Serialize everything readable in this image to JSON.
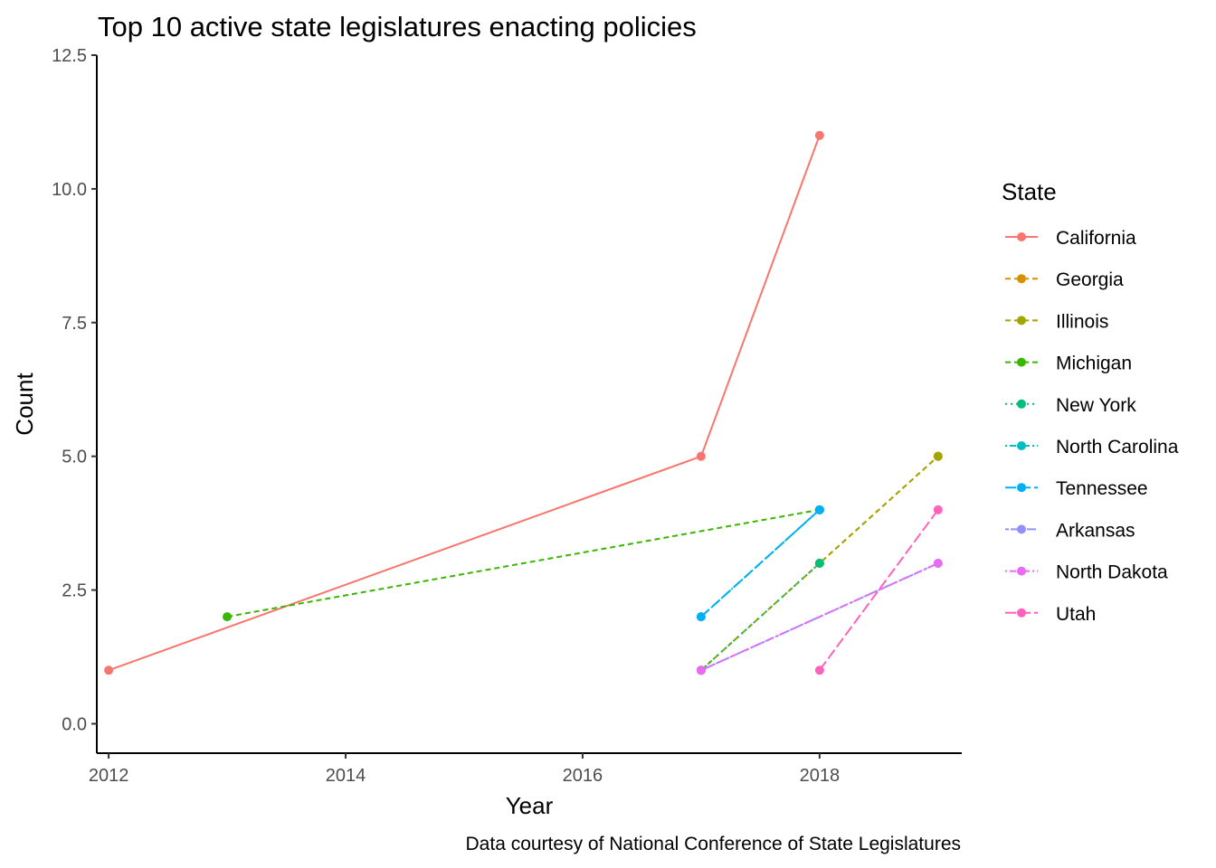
{
  "chart_data": {
    "type": "line",
    "title": "Top 10 active state legislatures enacting policies",
    "xlabel": "Year",
    "ylabel": "Count",
    "caption": "Data courtesy of National Conference of State Legislatures",
    "legend_title": "State",
    "legend_position": "right",
    "grid": false,
    "xlim": [
      2011.9,
      2019.2
    ],
    "ylim": [
      -0.55,
      12.5
    ],
    "x_ticks": [
      2012,
      2014,
      2016,
      2018
    ],
    "y_ticks": [
      0.0,
      2.5,
      5.0,
      7.5,
      10.0,
      12.5
    ],
    "x_tick_labels": [
      "2012",
      "2014",
      "2016",
      "2018"
    ],
    "y_tick_labels": [
      "0.0",
      "2.5",
      "5.0",
      "7.5",
      "10.0",
      "12.5"
    ],
    "series": [
      {
        "name": "California",
        "color": "#F8766D",
        "dash": "solid",
        "x": [
          2012,
          2017,
          2018
        ],
        "y": [
          1,
          5,
          11
        ]
      },
      {
        "name": "Georgia",
        "color": "#D89000",
        "dash": "dashed",
        "x": [
          2017,
          2018,
          2019
        ],
        "y": [
          1,
          3,
          5
        ]
      },
      {
        "name": "Illinois",
        "color": "#A3A500",
        "dash": "dashed",
        "x": [
          2017,
          2018,
          2019
        ],
        "y": [
          1,
          3,
          5
        ]
      },
      {
        "name": "Michigan",
        "color": "#39B600",
        "dash": "dashed",
        "x": [
          2013,
          2018
        ],
        "y": [
          2,
          4
        ]
      },
      {
        "name": "New York",
        "color": "#00BF7D",
        "dash": "dotted",
        "x": [
          2017,
          2018
        ],
        "y": [
          1,
          3
        ]
      },
      {
        "name": "North Carolina",
        "color": "#00BFC4",
        "dash": "dotdash",
        "x": [
          2017,
          2018
        ],
        "y": [
          2,
          4
        ]
      },
      {
        "name": "Tennessee",
        "color": "#00B0F6",
        "dash": "longdash",
        "x": [
          2017,
          2018
        ],
        "y": [
          2,
          4
        ]
      },
      {
        "name": "Arkansas",
        "color": "#9590FF",
        "dash": "twodash",
        "x": [
          2017,
          2019
        ],
        "y": [
          1,
          3
        ]
      },
      {
        "name": "North Dakota",
        "color": "#E76BF3",
        "dash": "dotdash",
        "x": [
          2017,
          2019
        ],
        "y": [
          1,
          3
        ]
      },
      {
        "name": "Utah",
        "color": "#FF62BC",
        "dash": "longdash",
        "x": [
          2018,
          2019
        ],
        "y": [
          1,
          4
        ]
      }
    ]
  }
}
